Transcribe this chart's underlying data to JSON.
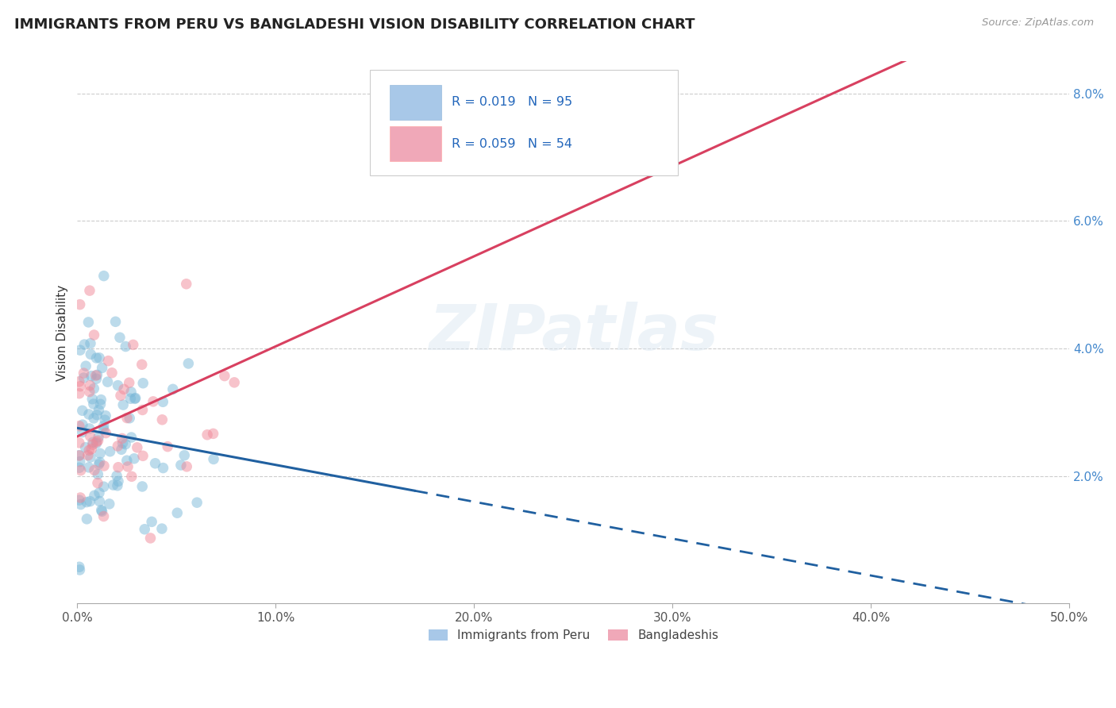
{
  "title": "IMMIGRANTS FROM PERU VS BANGLADESHI VISION DISABILITY CORRELATION CHART",
  "source": "Source: ZipAtlas.com",
  "ylabel": "Vision Disability",
  "watermark": "ZIPatlas",
  "xlim": [
    0.0,
    0.5
  ],
  "ylim": [
    0.0,
    0.085
  ],
  "xtick_vals": [
    0.0,
    0.1,
    0.2,
    0.3,
    0.4,
    0.5
  ],
  "ytick_vals": [
    0.02,
    0.04,
    0.06,
    0.08
  ],
  "ytick_labels": [
    "2.0%",
    "4.0%",
    "6.0%",
    "8.0%"
  ],
  "xtick_labels": [
    "0.0%",
    "10.0%",
    "20.0%",
    "30.0%",
    "40.0%",
    "50.0%"
  ],
  "legend_bottom": [
    {
      "label": "Immigrants from Peru",
      "color": "#a8c8e8"
    },
    {
      "label": "Bangladeshis",
      "color": "#f0a8b8"
    }
  ],
  "series1_color": "#7ab8d8",
  "series2_color": "#f08898",
  "trendline1_color": "#2060a0",
  "trendline2_color": "#d84060",
  "R1": 0.019,
  "N1": 95,
  "R2": 0.059,
  "N2": 54,
  "legend_label1": "R = 0.019   N = 95",
  "legend_label2": "R = 0.059   N = 54",
  "legend_box1_color": "#a8c8e8",
  "legend_box2_color": "#f0a8b8"
}
